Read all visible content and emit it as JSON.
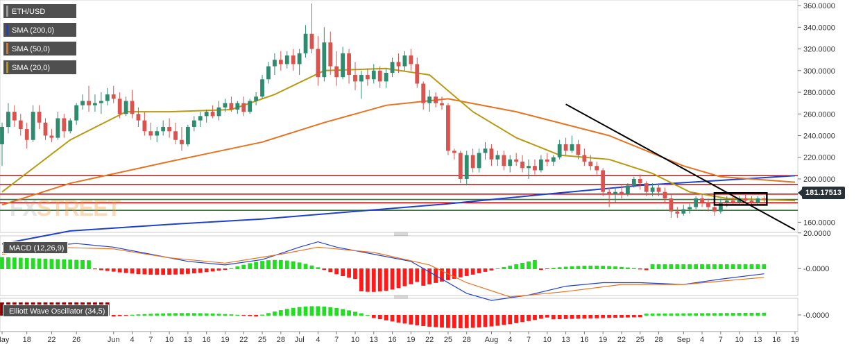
{
  "chart_data": [
    {
      "type": "candlestick",
      "title": "ETH/USD",
      "overlays": [
        {
          "name": "SMA (200,0)",
          "color": "#1f3fd0"
        },
        {
          "name": "SMA (50,0)",
          "color": "#e8731f"
        },
        {
          "name": "SMA (20,0)",
          "color": "#b89a10"
        }
      ],
      "ylim": [
        150,
        362
      ],
      "y_ticks": [
        "360.0000",
        "340.0000",
        "320.0000",
        "300.0000",
        "280.0000",
        "260.0000",
        "240.0000",
        "220.0000",
        "200.0000",
        "160.0000"
      ],
      "last_price": "181.17513",
      "horizontal_levels": [
        {
          "value": 203,
          "color": "#e00000"
        },
        {
          "value": 195,
          "color": "#e00000"
        },
        {
          "value": 186,
          "color": "#e00000"
        },
        {
          "value": 178,
          "color": "#e00000"
        },
        {
          "value": 181,
          "color": "#2e7d32"
        },
        {
          "value": 171,
          "color": "#2e7d32"
        }
      ],
      "trendline": {
        "x": [
          "Aug 13",
          "Sep 19"
        ],
        "y": [
          269,
          153
        ],
        "color": "#000000"
      },
      "consolidation_box": {
        "x": [
          "Sep 6",
          "Sep 14"
        ],
        "y": [
          176,
          187
        ]
      },
      "candles": [
        {
          "x": "May 14",
          "o": 232,
          "h": 252,
          "l": 212,
          "c": 248
        },
        {
          "x": "May 15",
          "o": 248,
          "h": 270,
          "l": 242,
          "c": 262
        },
        {
          "x": "May 16",
          "o": 262,
          "h": 268,
          "l": 248,
          "c": 254
        },
        {
          "x": "May 17",
          "o": 254,
          "h": 260,
          "l": 240,
          "c": 246
        },
        {
          "x": "May 18",
          "o": 246,
          "h": 252,
          "l": 228,
          "c": 236
        },
        {
          "x": "May 19",
          "o": 236,
          "h": 268,
          "l": 234,
          "c": 262
        },
        {
          "x": "May 20",
          "o": 262,
          "h": 268,
          "l": 246,
          "c": 252
        },
        {
          "x": "May 21",
          "o": 252,
          "h": 256,
          "l": 236,
          "c": 240
        },
        {
          "x": "May 22",
          "o": 240,
          "h": 246,
          "l": 234,
          "c": 238
        },
        {
          "x": "May 23",
          "o": 238,
          "h": 262,
          "l": 236,
          "c": 256
        },
        {
          "x": "May 24",
          "o": 256,
          "h": 260,
          "l": 238,
          "c": 244
        },
        {
          "x": "May 25",
          "o": 244,
          "h": 256,
          "l": 242,
          "c": 254
        },
        {
          "x": "May 26",
          "o": 254,
          "h": 270,
          "l": 250,
          "c": 268
        },
        {
          "x": "May 27",
          "o": 268,
          "h": 278,
          "l": 264,
          "c": 272
        },
        {
          "x": "May 28",
          "o": 272,
          "h": 286,
          "l": 262,
          "c": 268
        },
        {
          "x": "May 29",
          "o": 268,
          "h": 278,
          "l": 262,
          "c": 270
        },
        {
          "x": "May 30",
          "o": 270,
          "h": 280,
          "l": 260,
          "c": 272
        },
        {
          "x": "May 31",
          "o": 272,
          "h": 284,
          "l": 268,
          "c": 278
        },
        {
          "x": "Jun 1",
          "o": 278,
          "h": 286,
          "l": 270,
          "c": 274
        },
        {
          "x": "Jun 2",
          "o": 274,
          "h": 280,
          "l": 256,
          "c": 260
        },
        {
          "x": "Jun 3",
          "o": 260,
          "h": 276,
          "l": 258,
          "c": 272
        },
        {
          "x": "Jun 4",
          "o": 272,
          "h": 282,
          "l": 256,
          "c": 260
        },
        {
          "x": "Jun 5",
          "o": 260,
          "h": 266,
          "l": 248,
          "c": 254
        },
        {
          "x": "Jun 6",
          "o": 254,
          "h": 262,
          "l": 240,
          "c": 244
        },
        {
          "x": "Jun 7",
          "o": 244,
          "h": 252,
          "l": 236,
          "c": 240
        },
        {
          "x": "Jun 8",
          "o": 240,
          "h": 248,
          "l": 234,
          "c": 244
        },
        {
          "x": "Jun 9",
          "o": 244,
          "h": 254,
          "l": 240,
          "c": 248
        },
        {
          "x": "Jun 10",
          "o": 248,
          "h": 256,
          "l": 238,
          "c": 244
        },
        {
          "x": "Jun 11",
          "o": 244,
          "h": 252,
          "l": 232,
          "c": 236
        },
        {
          "x": "Jun 12",
          "o": 236,
          "h": 248,
          "l": 226,
          "c": 232
        },
        {
          "x": "Jun 13",
          "o": 232,
          "h": 250,
          "l": 230,
          "c": 248
        },
        {
          "x": "Jun 14",
          "o": 248,
          "h": 258,
          "l": 244,
          "c": 254
        },
        {
          "x": "Jun 15",
          "o": 254,
          "h": 262,
          "l": 248,
          "c": 258
        },
        {
          "x": "Jun 16",
          "o": 258,
          "h": 264,
          "l": 252,
          "c": 262
        },
        {
          "x": "Jun 17",
          "o": 262,
          "h": 268,
          "l": 256,
          "c": 258
        },
        {
          "x": "Jun 18",
          "o": 258,
          "h": 272,
          "l": 254,
          "c": 266
        },
        {
          "x": "Jun 19",
          "o": 266,
          "h": 274,
          "l": 262,
          "c": 270
        },
        {
          "x": "Jun 20",
          "o": 270,
          "h": 276,
          "l": 262,
          "c": 264
        },
        {
          "x": "Jun 21",
          "o": 264,
          "h": 272,
          "l": 260,
          "c": 270
        },
        {
          "x": "Jun 22",
          "o": 270,
          "h": 276,
          "l": 258,
          "c": 262
        },
        {
          "x": "Jun 23",
          "o": 262,
          "h": 274,
          "l": 260,
          "c": 272
        },
        {
          "x": "Jun 24",
          "o": 272,
          "h": 280,
          "l": 268,
          "c": 276
        },
        {
          "x": "Jun 25",
          "o": 276,
          "h": 296,
          "l": 274,
          "c": 292
        },
        {
          "x": "Jun 26",
          "o": 292,
          "h": 308,
          "l": 288,
          "c": 304
        },
        {
          "x": "Jun 27",
          "o": 304,
          "h": 316,
          "l": 296,
          "c": 310
        },
        {
          "x": "Jun 28",
          "o": 310,
          "h": 318,
          "l": 300,
          "c": 306
        },
        {
          "x": "Jun 29",
          "o": 306,
          "h": 318,
          "l": 302,
          "c": 314
        },
        {
          "x": "Jun 30",
          "o": 314,
          "h": 320,
          "l": 300,
          "c": 306
        },
        {
          "x": "Jul 1",
          "o": 306,
          "h": 320,
          "l": 296,
          "c": 316
        },
        {
          "x": "Jul 2",
          "o": 316,
          "h": 342,
          "l": 312,
          "c": 334
        },
        {
          "x": "Jul 3",
          "o": 334,
          "h": 362,
          "l": 316,
          "c": 320
        },
        {
          "x": "Jul 4",
          "o": 320,
          "h": 332,
          "l": 286,
          "c": 294
        },
        {
          "x": "Jul 5",
          "o": 294,
          "h": 340,
          "l": 290,
          "c": 326
        },
        {
          "x": "Jul 6",
          "o": 326,
          "h": 336,
          "l": 296,
          "c": 304
        },
        {
          "x": "Jul 7",
          "o": 304,
          "h": 318,
          "l": 286,
          "c": 294
        },
        {
          "x": "Jul 8",
          "o": 294,
          "h": 322,
          "l": 292,
          "c": 316
        },
        {
          "x": "Jul 9",
          "o": 316,
          "h": 320,
          "l": 288,
          "c": 296
        },
        {
          "x": "Jul 10",
          "o": 296,
          "h": 308,
          "l": 282,
          "c": 290
        },
        {
          "x": "Jul 11",
          "o": 290,
          "h": 300,
          "l": 274,
          "c": 296
        },
        {
          "x": "Jul 12",
          "o": 296,
          "h": 302,
          "l": 286,
          "c": 292
        },
        {
          "x": "Jul 13",
          "o": 292,
          "h": 306,
          "l": 288,
          "c": 300
        },
        {
          "x": "Jul 14",
          "o": 300,
          "h": 304,
          "l": 284,
          "c": 290
        },
        {
          "x": "Jul 15",
          "o": 290,
          "h": 302,
          "l": 284,
          "c": 298
        },
        {
          "x": "Jul 16",
          "o": 298,
          "h": 312,
          "l": 294,
          "c": 308
        },
        {
          "x": "Jul 17",
          "o": 308,
          "h": 316,
          "l": 298,
          "c": 304
        },
        {
          "x": "Jul 18",
          "o": 304,
          "h": 318,
          "l": 300,
          "c": 314
        },
        {
          "x": "Jul 19",
          "o": 314,
          "h": 320,
          "l": 300,
          "c": 306
        },
        {
          "x": "Jul 20",
          "o": 306,
          "h": 312,
          "l": 284,
          "c": 288
        },
        {
          "x": "Jul 21",
          "o": 288,
          "h": 290,
          "l": 264,
          "c": 270
        },
        {
          "x": "Jul 22",
          "o": 270,
          "h": 282,
          "l": 262,
          "c": 276
        },
        {
          "x": "Jul 23",
          "o": 276,
          "h": 280,
          "l": 266,
          "c": 270
        },
        {
          "x": "Jul 24",
          "o": 270,
          "h": 276,
          "l": 264,
          "c": 268
        },
        {
          "x": "Jul 25",
          "o": 268,
          "h": 270,
          "l": 222,
          "c": 226
        },
        {
          "x": "Jul 26",
          "o": 226,
          "h": 228,
          "l": 218,
          "c": 224
        },
        {
          "x": "Jul 27",
          "o": 224,
          "h": 226,
          "l": 196,
          "c": 200
        },
        {
          "x": "Jul 28",
          "o": 200,
          "h": 226,
          "l": 194,
          "c": 222
        },
        {
          "x": "Jul 29",
          "o": 222,
          "h": 228,
          "l": 206,
          "c": 210
        },
        {
          "x": "Jul 30",
          "o": 210,
          "h": 228,
          "l": 206,
          "c": 224
        },
        {
          "x": "Jul 31",
          "o": 224,
          "h": 234,
          "l": 218,
          "c": 228
        },
        {
          "x": "Aug 1",
          "o": 228,
          "h": 232,
          "l": 212,
          "c": 218
        },
        {
          "x": "Aug 2",
          "o": 218,
          "h": 226,
          "l": 212,
          "c": 222
        },
        {
          "x": "Aug 3",
          "o": 222,
          "h": 226,
          "l": 208,
          "c": 212
        },
        {
          "x": "Aug 4",
          "o": 212,
          "h": 222,
          "l": 206,
          "c": 218
        },
        {
          "x": "Aug 5",
          "o": 218,
          "h": 224,
          "l": 212,
          "c": 216
        },
        {
          "x": "Aug 6",
          "o": 216,
          "h": 222,
          "l": 206,
          "c": 210
        },
        {
          "x": "Aug 7",
          "o": 210,
          "h": 218,
          "l": 200,
          "c": 212
        },
        {
          "x": "Aug 8",
          "o": 212,
          "h": 218,
          "l": 204,
          "c": 208
        },
        {
          "x": "Aug 9",
          "o": 208,
          "h": 222,
          "l": 206,
          "c": 218
        },
        {
          "x": "Aug 10",
          "o": 218,
          "h": 224,
          "l": 212,
          "c": 216
        },
        {
          "x": "Aug 11",
          "o": 216,
          "h": 222,
          "l": 212,
          "c": 220
        },
        {
          "x": "Aug 12",
          "o": 220,
          "h": 236,
          "l": 218,
          "c": 232
        },
        {
          "x": "Aug 13",
          "o": 232,
          "h": 238,
          "l": 222,
          "c": 226
        },
        {
          "x": "Aug 14",
          "o": 226,
          "h": 240,
          "l": 224,
          "c": 232
        },
        {
          "x": "Aug 15",
          "o": 232,
          "h": 236,
          "l": 218,
          "c": 222
        },
        {
          "x": "Aug 16",
          "o": 222,
          "h": 228,
          "l": 212,
          "c": 216
        },
        {
          "x": "Aug 17",
          "o": 216,
          "h": 222,
          "l": 208,
          "c": 212
        },
        {
          "x": "Aug 18",
          "o": 212,
          "h": 216,
          "l": 204,
          "c": 208
        },
        {
          "x": "Aug 19",
          "o": 208,
          "h": 210,
          "l": 184,
          "c": 188
        },
        {
          "x": "Aug 20",
          "o": 188,
          "h": 192,
          "l": 174,
          "c": 186
        },
        {
          "x": "Aug 21",
          "o": 186,
          "h": 192,
          "l": 178,
          "c": 188
        },
        {
          "x": "Aug 22",
          "o": 188,
          "h": 194,
          "l": 182,
          "c": 186
        },
        {
          "x": "Aug 23",
          "o": 186,
          "h": 196,
          "l": 184,
          "c": 194
        },
        {
          "x": "Aug 24",
          "o": 194,
          "h": 202,
          "l": 192,
          "c": 200
        },
        {
          "x": "Aug 25",
          "o": 200,
          "h": 204,
          "l": 190,
          "c": 196
        },
        {
          "x": "Aug 26",
          "o": 196,
          "h": 198,
          "l": 184,
          "c": 188
        },
        {
          "x": "Aug 27",
          "o": 188,
          "h": 196,
          "l": 184,
          "c": 192
        },
        {
          "x": "Aug 28",
          "o": 192,
          "h": 196,
          "l": 184,
          "c": 188
        },
        {
          "x": "Aug 29",
          "o": 188,
          "h": 192,
          "l": 178,
          "c": 182
        },
        {
          "x": "Aug 30",
          "o": 182,
          "h": 186,
          "l": 164,
          "c": 170
        },
        {
          "x": "Aug 31",
          "o": 170,
          "h": 174,
          "l": 164,
          "c": 168
        },
        {
          "x": "Sep 1",
          "o": 168,
          "h": 176,
          "l": 166,
          "c": 172
        },
        {
          "x": "Sep 2",
          "o": 172,
          "h": 178,
          "l": 168,
          "c": 174
        },
        {
          "x": "Sep 3",
          "o": 174,
          "h": 184,
          "l": 172,
          "c": 182
        },
        {
          "x": "Sep 4",
          "o": 182,
          "h": 186,
          "l": 174,
          "c": 178
        },
        {
          "x": "Sep 5",
          "o": 178,
          "h": 182,
          "l": 170,
          "c": 174
        },
        {
          "x": "Sep 6",
          "o": 174,
          "h": 176,
          "l": 166,
          "c": 170
        },
        {
          "x": "Sep 7",
          "o": 170,
          "h": 182,
          "l": 168,
          "c": 178
        },
        {
          "x": "Sep 8",
          "o": 178,
          "h": 184,
          "l": 174,
          "c": 180
        },
        {
          "x": "Sep 9",
          "o": 180,
          "h": 184,
          "l": 176,
          "c": 178
        },
        {
          "x": "Sep 10",
          "o": 178,
          "h": 184,
          "l": 176,
          "c": 182
        },
        {
          "x": "Sep 11",
          "o": 182,
          "h": 186,
          "l": 178,
          "c": 180
        },
        {
          "x": "Sep 12",
          "o": 180,
          "h": 184,
          "l": 176,
          "c": 178
        },
        {
          "x": "Sep 13",
          "o": 178,
          "h": 184,
          "l": 176,
          "c": 182
        },
        {
          "x": "Sep 14",
          "o": 182,
          "h": 184,
          "l": 178,
          "c": 181
        }
      ]
    },
    {
      "type": "line",
      "title": "MACD (12,26,9)",
      "y_ticks": [
        "20.0000",
        "-0.0000"
      ],
      "ylim": [
        -24,
        24
      ]
    },
    {
      "type": "bar",
      "title": "Elliott Wave Oscillator (34,5)",
      "y_ticks": [
        "-0.0000"
      ],
      "ylim": [
        -45,
        45
      ]
    }
  ],
  "x_axis": {
    "tick_labels": [
      "May",
      "18",
      "22",
      "26",
      "Jun",
      "4",
      "7",
      "10",
      "13",
      "16",
      "19",
      "22",
      "25",
      "28",
      "Jul",
      "4",
      "7",
      "10",
      "13",
      "16",
      "19",
      "22",
      "25",
      "28",
      "Aug",
      "4",
      "7",
      "10",
      "13",
      "16",
      "19",
      "22",
      "25",
      "28",
      "Sep",
      "4",
      "7",
      "10",
      "13",
      "16",
      "19"
    ],
    "tick_dates": [
      "May 14",
      "May 18",
      "May 22",
      "May 26",
      "Jun 1",
      "Jun 4",
      "Jun 7",
      "Jun 10",
      "Jun 13",
      "Jun 16",
      "Jun 19",
      "Jun 22",
      "Jun 25",
      "Jun 28",
      "Jul 1",
      "Jul 4",
      "Jul 7",
      "Jul 10",
      "Jul 13",
      "Jul 16",
      "Jul 19",
      "Jul 22",
      "Jul 25",
      "Jul 28",
      "Aug 1",
      "Aug 4",
      "Aug 7",
      "Aug 10",
      "Aug 13",
      "Aug 16",
      "Aug 19",
      "Aug 22",
      "Aug 25",
      "Aug 28",
      "Sep 1",
      "Sep 4",
      "Sep 7",
      "Sep 10",
      "Sep 13",
      "Sep 16",
      "Sep 19"
    ]
  },
  "colors": {
    "up": "#2e8b6e",
    "down": "#d9534f",
    "macd_line": "#1f3fd0",
    "signal_line": "#e8731f",
    "hist_pos": "#22dd22",
    "hist_neg": "#ff1a1a",
    "ewo_pos_dark": "#8b0000"
  },
  "watermark": {
    "part1": "FX",
    "part2": "STREET"
  }
}
